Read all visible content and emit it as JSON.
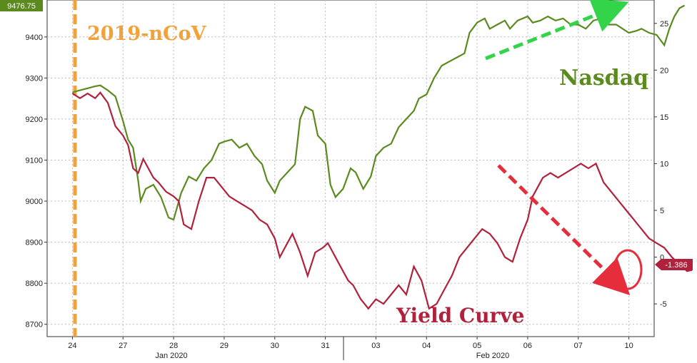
{
  "chart_data": {
    "type": "line",
    "x_categories": [
      "24",
      "27",
      "28",
      "29",
      "30",
      "31",
      "03",
      "04",
      "05",
      "06",
      "07",
      "10"
    ],
    "month_labels": [
      "Jan 2020",
      "Feb 2020"
    ],
    "y_left": {
      "ticks": [
        8700,
        8800,
        8900,
        9000,
        9100,
        9200,
        9300,
        9400
      ],
      "lim": [
        8670,
        9490
      ]
    },
    "y_right": {
      "ticks": [
        -5,
        0,
        5,
        10,
        15,
        20,
        25
      ],
      "lim": [
        -8.5,
        27.5
      ]
    },
    "series": [
      {
        "name": "Nasdaq",
        "axis": "left",
        "color": "#5b8a1f",
        "x": [
          0.0,
          0.15,
          0.3,
          0.45,
          0.55,
          0.7,
          0.85,
          1.0,
          1.1,
          1.2,
          1.3,
          1.35,
          1.45,
          1.6,
          1.75,
          1.9,
          2.0,
          2.15,
          2.3,
          2.45,
          2.6,
          2.75,
          2.9,
          3.0,
          3.15,
          3.3,
          3.45,
          3.6,
          3.75,
          3.85,
          4.0,
          4.1,
          4.25,
          4.4,
          4.5,
          4.6,
          4.75,
          4.85,
          5.0,
          5.1,
          5.2,
          5.35,
          5.5,
          5.6,
          5.75,
          5.9,
          6.0,
          6.15,
          6.3,
          6.45,
          6.6,
          6.75,
          6.85,
          7.0,
          7.15,
          7.3,
          7.45,
          7.6,
          7.75,
          7.85,
          8.0,
          8.15,
          8.25,
          8.4,
          8.55,
          8.65,
          8.8,
          9.0,
          9.1,
          9.25,
          9.4,
          9.55,
          9.7,
          9.85,
          10.0,
          10.15,
          10.3,
          10.45,
          10.6,
          10.75,
          11.0,
          11.15,
          11.25,
          11.4,
          11.55,
          11.7,
          11.8,
          11.9,
          12.0,
          12.1
        ],
        "values": [
          9265,
          9270,
          9275,
          9280,
          9282,
          9270,
          9255,
          9195,
          9150,
          9130,
          9050,
          9000,
          9030,
          9040,
          9010,
          8960,
          8955,
          9020,
          9060,
          9050,
          9080,
          9100,
          9140,
          9145,
          9150,
          9130,
          9140,
          9110,
          9090,
          9050,
          9020,
          9050,
          9070,
          9090,
          9200,
          9230,
          9220,
          9160,
          9140,
          9040,
          9010,
          9030,
          9080,
          9070,
          9030,
          9060,
          9110,
          9130,
          9140,
          9180,
          9200,
          9220,
          9250,
          9260,
          9300,
          9330,
          9340,
          9350,
          9360,
          9410,
          9435,
          9445,
          9420,
          9430,
          9440,
          9420,
          9440,
          9450,
          9435,
          9440,
          9450,
          9440,
          9445,
          9430,
          9430,
          9420,
          9440,
          9445,
          9430,
          9430,
          9410,
          9415,
          9420,
          9410,
          9405,
          9380,
          9420,
          9450,
          9470,
          9476.75
        ]
      },
      {
        "name": "Yield Curve",
        "axis": "right",
        "color": "#b0213b",
        "x": [
          0.0,
          0.15,
          0.3,
          0.45,
          0.55,
          0.7,
          0.85,
          1.0,
          1.1,
          1.2,
          1.3,
          1.4,
          1.5,
          1.6,
          1.7,
          1.85,
          2.0,
          2.1,
          2.2,
          2.35,
          2.5,
          2.65,
          2.8,
          2.95,
          3.1,
          3.25,
          3.4,
          3.55,
          3.7,
          3.85,
          4.0,
          4.1,
          4.2,
          4.35,
          4.5,
          4.65,
          4.8,
          4.95,
          5.05,
          5.15,
          5.3,
          5.45,
          5.55,
          5.7,
          5.85,
          6.0,
          6.15,
          6.3,
          6.45,
          6.6,
          6.75,
          6.9,
          7.05,
          7.2,
          7.35,
          7.5,
          7.65,
          7.8,
          7.95,
          8.1,
          8.25,
          8.4,
          8.55,
          8.7,
          8.85,
          9.0,
          9.1,
          9.2,
          9.3,
          9.45,
          9.6,
          9.75,
          9.9,
          10.05,
          10.2,
          10.35,
          10.5,
          10.65,
          10.8,
          10.95,
          11.1,
          11.25,
          11.4,
          11.55,
          11.7,
          11.85,
          11.95,
          12.05,
          12.15,
          12.25
        ],
        "values": [
          17.5,
          17.0,
          17.5,
          17.0,
          17.6,
          16.5,
          14.0,
          13.0,
          12.0,
          9.5,
          9.0,
          10.5,
          9.5,
          8.5,
          8.0,
          7.0,
          6.5,
          6.0,
          3.5,
          3.0,
          6.0,
          8.5,
          8.5,
          7.5,
          6.5,
          6.0,
          5.5,
          5.0,
          4.0,
          3.5,
          2.0,
          0.0,
          1.0,
          2.5,
          0.5,
          -2.0,
          0.5,
          1.0,
          1.5,
          0.5,
          -1.0,
          -2.5,
          -3.0,
          -4.5,
          -5.5,
          -4.5,
          -5.0,
          -4.0,
          -3.0,
          -4.0,
          -1.0,
          -2.5,
          -5.5,
          -5.0,
          -3.5,
          -2.0,
          0.0,
          1.0,
          2.0,
          3.0,
          2.5,
          1.5,
          0.0,
          -0.5,
          2.0,
          4.0,
          6.5,
          7.5,
          8.5,
          9.0,
          8.5,
          9.0,
          9.5,
          10.0,
          9.5,
          10.0,
          8.0,
          7.0,
          6.0,
          5.0,
          4.0,
          3.0,
          2.0,
          1.5,
          1.0,
          0.0,
          -0.5,
          -1.0,
          -1.5,
          -1.386
        ]
      }
    ],
    "last_value_left": "9476.75",
    "last_value_right": "-1.386",
    "event_label": "2019-nCoV",
    "event_x": 0.05,
    "annotations": {
      "nasdaq_label": "Nasdaq",
      "yield_curve_label": "Yield Curve"
    },
    "colors": {
      "nasdaq": "#5b8a1f",
      "yield_curve": "#b0213b",
      "event_line": "#f2a23a",
      "nasdaq_arrow": "#33d44a",
      "yield_arrow": "#e52d3b",
      "grid": "#bcbcbc"
    }
  }
}
